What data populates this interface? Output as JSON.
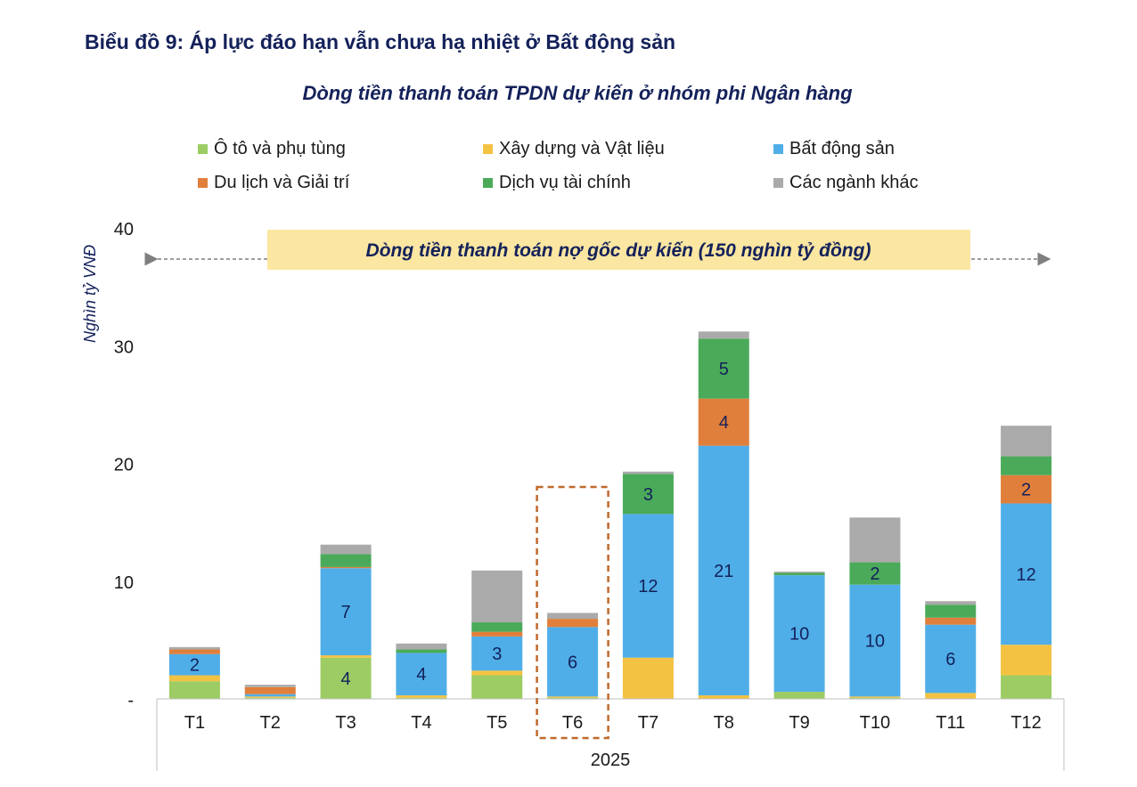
{
  "title": "Biểu đồ 9: Áp lực đáo hạn vẫn chưa hạ nhiệt ở Bất động sản",
  "chart_data": {
    "type": "bar",
    "stacked": true,
    "title": "Dòng tiền thanh toán TPDN dự kiến ở nhóm phi Ngân hàng",
    "ylabel": "Nghìn tỷ VNĐ",
    "xlabel": "2025",
    "ylim": [
      0,
      40
    ],
    "yticks": [
      {
        "value": 0,
        "label": "-"
      },
      {
        "value": 10,
        "label": "10"
      },
      {
        "value": 20,
        "label": "20"
      },
      {
        "value": 30,
        "label": "30"
      },
      {
        "value": 40,
        "label": "40"
      }
    ],
    "categories": [
      "T1",
      "T2",
      "T3",
      "T4",
      "T5",
      "T6",
      "T7",
      "T8",
      "T9",
      "T10",
      "T11",
      "T12"
    ],
    "highlight_category": "T6",
    "banner": "Dòng tiền thanh toán nợ gốc dự kiến (150 nghìn tỷ đồng)",
    "series": [
      {
        "name": "Ô tô và phụ tùng",
        "color": "#9ccc63",
        "values": [
          1.5,
          0.1,
          3.5,
          0.1,
          2.0,
          0.1,
          0.0,
          0.0,
          0.6,
          0.1,
          0.0,
          2.0
        ],
        "labels": [
          "",
          "",
          "4",
          "",
          "",
          "",
          "",
          "",
          "",
          "",
          "",
          ""
        ]
      },
      {
        "name": "Xây dựng và Vật liệu",
        "color": "#f4c242",
        "values": [
          0.5,
          0.1,
          0.2,
          0.2,
          0.4,
          0.1,
          3.5,
          0.3,
          0.0,
          0.1,
          0.5,
          2.6
        ],
        "labels": [
          "",
          "",
          "",
          "",
          "",
          "",
          "",
          "",
          "",
          "",
          "",
          ""
        ]
      },
      {
        "name": "Bất động sản",
        "color": "#4faee8",
        "values": [
          1.8,
          0.2,
          7.4,
          3.6,
          2.9,
          5.9,
          12.2,
          21.2,
          9.9,
          9.5,
          5.8,
          12.0
        ],
        "labels": [
          "2",
          "",
          "7",
          "4",
          "3",
          "6",
          "12",
          "21",
          "10",
          "10",
          "6",
          "12"
        ]
      },
      {
        "name": "Du lịch và Giải trí",
        "color": "#e07f3b",
        "values": [
          0.4,
          0.6,
          0.1,
          0.0,
          0.4,
          0.7,
          0.0,
          4.0,
          0.0,
          0.0,
          0.6,
          2.4
        ],
        "labels": [
          "",
          "",
          "",
          "",
          "",
          "",
          "",
          "4",
          "",
          "",
          "",
          "2"
        ]
      },
      {
        "name": "Dịch vụ tài chính",
        "color": "#4aaa5a",
        "values": [
          0.0,
          0.0,
          1.1,
          0.3,
          0.8,
          0.0,
          3.4,
          5.1,
          0.2,
          1.9,
          1.1,
          1.6
        ],
        "labels": [
          "",
          "",
          "",
          "",
          "",
          "",
          "3",
          "5",
          "",
          "2",
          "",
          ""
        ]
      },
      {
        "name": "Các ngành khác",
        "color": "#aaaaaa",
        "values": [
          0.2,
          0.2,
          0.8,
          0.5,
          4.4,
          0.5,
          0.2,
          0.6,
          0.1,
          3.8,
          0.3,
          2.6
        ],
        "labels": [
          "",
          "",
          "",
          "",
          "",
          "",
          "",
          "",
          "",
          "",
          "",
          ""
        ]
      }
    ]
  }
}
